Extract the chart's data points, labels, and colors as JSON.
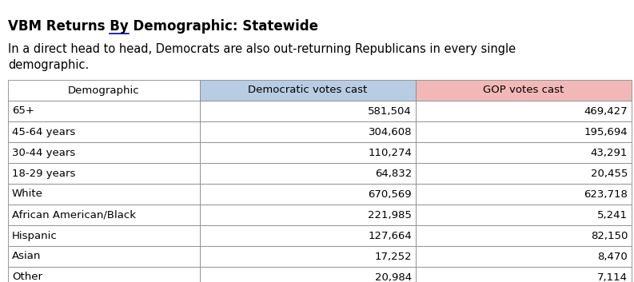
{
  "title": "VBM Returns By Demographic: Statewide",
  "title_underline_word": "By",
  "subtitle_line1": "In a direct head to head, Democrats are also out-returning Republicans in every single",
  "subtitle_line2": "demographic.",
  "col_headers": [
    "Demographic",
    "Democratic votes cast",
    "GOP votes cast"
  ],
  "col_header_colors": [
    "#ffffff",
    "#b8cce4",
    "#f2b8b8"
  ],
  "rows": [
    [
      "65+",
      "581,504",
      "469,427"
    ],
    [
      "45-64 years",
      "304,608",
      "195,694"
    ],
    [
      "30-44 years",
      "110,274",
      "43,291"
    ],
    [
      "18-29 years",
      "64,832",
      "20,455"
    ],
    [
      "White",
      "670,569",
      "623,718"
    ],
    [
      "African American/Black",
      "221,985",
      "5,241"
    ],
    [
      "Hispanic",
      "127,664",
      "82,150"
    ],
    [
      "Asian",
      "17,252",
      "8,470"
    ],
    [
      "Other",
      "20,984",
      "7,114"
    ]
  ],
  "background_color": "#ffffff",
  "border_color": "#888888",
  "text_color": "#000000",
  "underline_color": "#0000bb",
  "title_fontsize": 12,
  "subtitle_fontsize": 10.5,
  "header_fontsize": 9.5,
  "cell_fontsize": 9.5
}
